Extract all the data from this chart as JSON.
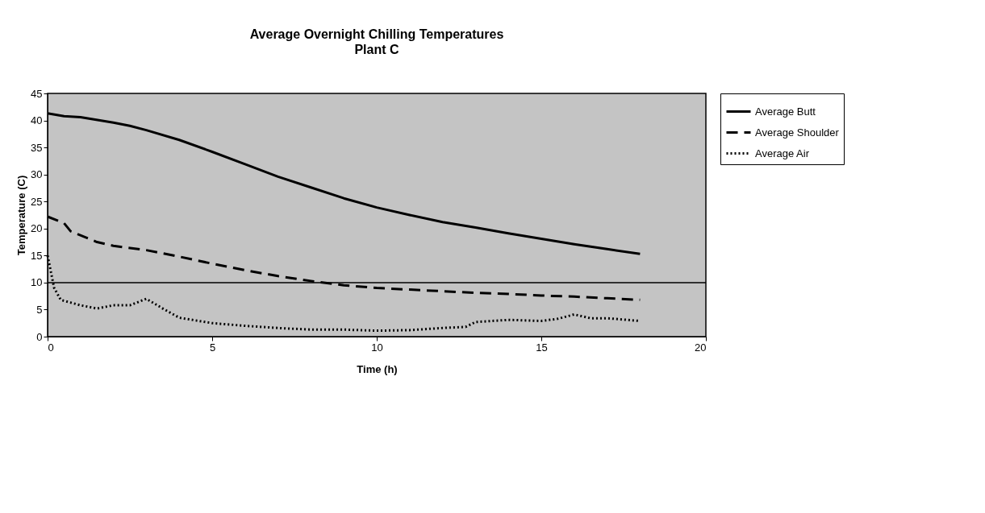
{
  "chart_data": {
    "type": "line",
    "title": "Average Overnight Chilling Temperatures",
    "subtitle": "Plant C",
    "xlabel": "Time (h)",
    "ylabel": "Temperature (C)",
    "xlim": [
      0,
      20
    ],
    "xticks": [
      0,
      5,
      10,
      15,
      20
    ],
    "ylim": [
      0,
      45
    ],
    "yticks": [
      0,
      5,
      10,
      15,
      20,
      25,
      30,
      35,
      40,
      45
    ],
    "grid": false,
    "legend": "right",
    "marker": "none",
    "series": [
      {
        "name": "Average Butt",
        "color": "#000000",
        "line_style": "solid",
        "x": [
          0,
          0.5,
          1,
          2,
          2.5,
          3,
          4,
          5,
          6,
          7,
          8,
          9,
          10,
          11,
          12,
          13,
          14,
          15,
          16,
          17,
          18
        ],
        "values": [
          41.3,
          40.8,
          40.6,
          39.6,
          39,
          38.2,
          36.4,
          34.2,
          31.9,
          29.6,
          27.6,
          25.6,
          23.9,
          22.5,
          21.2,
          20.2,
          19.1,
          18.1,
          17.1,
          16.2,
          15.3
        ]
      },
      {
        "name": "Average Shoulder",
        "color": "#000000",
        "line_style": "dashed",
        "x": [
          0,
          0.5,
          0.7,
          1.5,
          2,
          3,
          4,
          5,
          6,
          7,
          8,
          9,
          10,
          11,
          12,
          13,
          14,
          15,
          16,
          17,
          18
        ],
        "values": [
          22.2,
          21,
          19.5,
          17.5,
          16.8,
          16,
          14.8,
          13.5,
          12.3,
          11.2,
          10.3,
          9.5,
          9,
          8.7,
          8.4,
          8.1,
          7.9,
          7.6,
          7.4,
          7.1,
          6.8
        ]
      },
      {
        "name": "Average Air",
        "color": "#000000",
        "line_style": "dotted",
        "x": [
          0,
          0.2,
          0.4,
          1,
          1.5,
          2,
          2.5,
          3,
          3.5,
          4,
          5,
          6,
          7,
          8,
          9,
          10,
          11,
          12,
          12.7,
          13,
          14,
          15,
          15.5,
          16,
          16.5,
          17,
          18
        ],
        "values": [
          15,
          9,
          6.8,
          5.8,
          5.2,
          5.8,
          5.8,
          7,
          5.2,
          3.5,
          2.5,
          2,
          1.6,
          1.3,
          1.3,
          1.1,
          1.2,
          1.6,
          1.8,
          2.7,
          3.1,
          2.9,
          3.3,
          4.1,
          3.4,
          3.4,
          2.9
        ]
      }
    ],
    "ref_lines": [
      {
        "axis": "y",
        "value": 10,
        "label": null,
        "color": "#000000",
        "line_style": "solid"
      }
    ]
  }
}
